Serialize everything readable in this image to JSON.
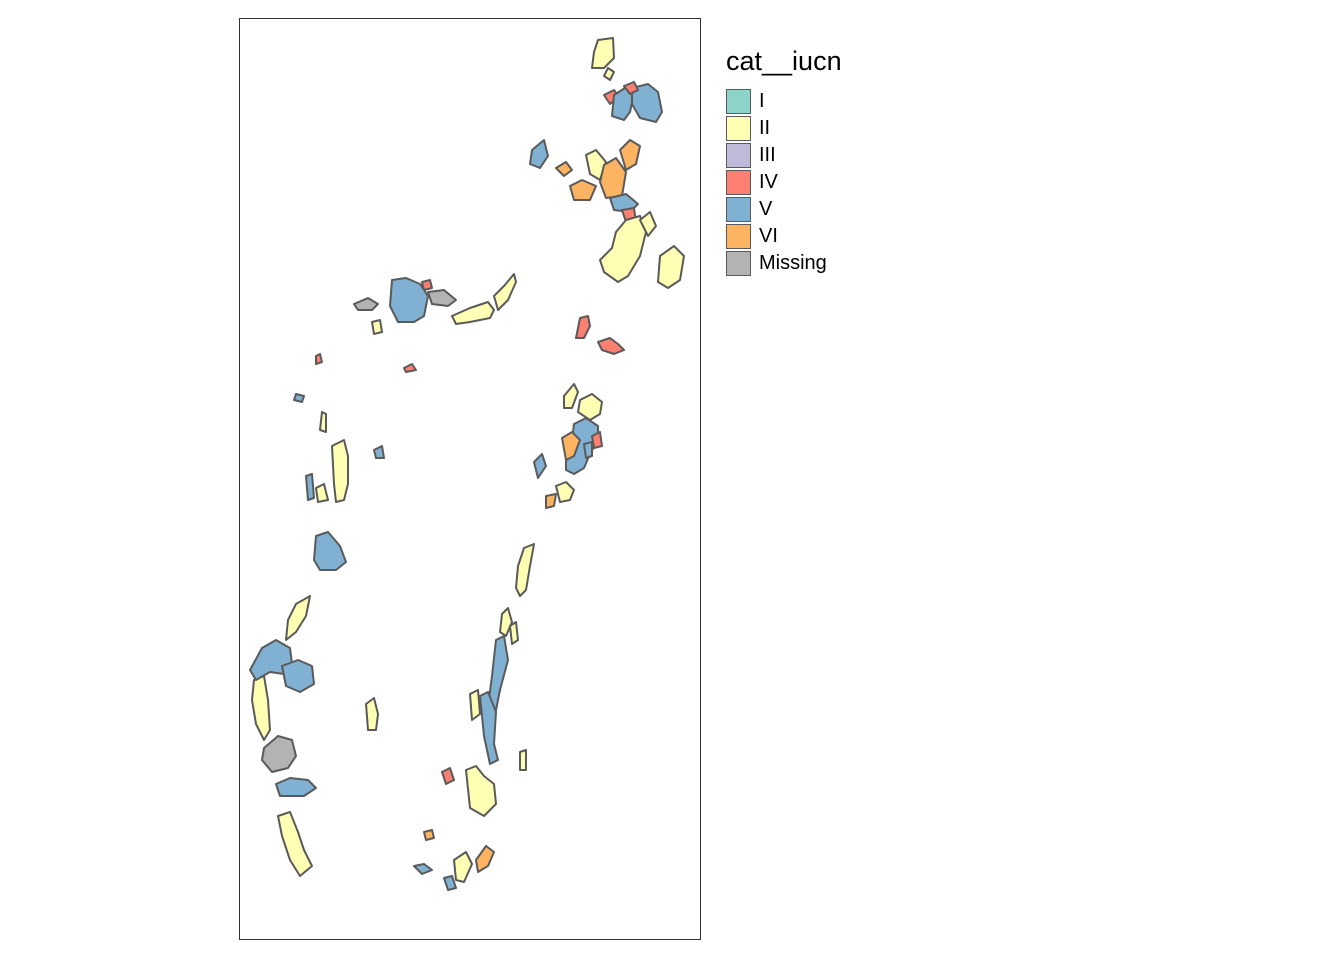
{
  "legend": {
    "title": "cat__iucn",
    "items": [
      {
        "label": "I",
        "color": "#8DD3C7"
      },
      {
        "label": "II",
        "color": "#FFFFB3"
      },
      {
        "label": "III",
        "color": "#BEBADA"
      },
      {
        "label": "IV",
        "color": "#FB8072"
      },
      {
        "label": "V",
        "color": "#80B1D3"
      },
      {
        "label": "VI",
        "color": "#FDB462"
      },
      {
        "label": "Missing",
        "color": "#B3B3B3"
      }
    ]
  },
  "map": {
    "areas": [
      {
        "category": "II"
      },
      {
        "category": "II"
      },
      {
        "category": "IV"
      },
      {
        "category": "V"
      },
      {
        "category": "V"
      },
      {
        "category": "IV"
      },
      {
        "category": "II"
      },
      {
        "category": "VI"
      },
      {
        "category": "VI"
      },
      {
        "category": "VI"
      },
      {
        "category": "V"
      },
      {
        "category": "IV"
      },
      {
        "category": "II"
      },
      {
        "category": "II"
      },
      {
        "category": "II"
      },
      {
        "category": "V"
      },
      {
        "category": "VI"
      },
      {
        "category": "Missing"
      },
      {
        "category": "II"
      },
      {
        "category": "II"
      },
      {
        "category": "Missing"
      },
      {
        "category": "II"
      },
      {
        "category": "IV"
      },
      {
        "category": "IV"
      },
      {
        "category": "IV"
      },
      {
        "category": "IV"
      },
      {
        "category": "IV"
      },
      {
        "category": "V"
      },
      {
        "category": "II"
      },
      {
        "category": "II"
      },
      {
        "category": "V"
      },
      {
        "category": "V"
      },
      {
        "category": "VI"
      },
      {
        "category": "II"
      },
      {
        "category": "IV"
      },
      {
        "category": "V"
      },
      {
        "category": "VI"
      },
      {
        "category": "V"
      },
      {
        "category": "II"
      },
      {
        "category": "II"
      },
      {
        "category": "V"
      },
      {
        "category": "II"
      },
      {
        "category": "V"
      },
      {
        "category": "V"
      },
      {
        "category": "II"
      },
      {
        "category": "II"
      },
      {
        "category": "II"
      },
      {
        "category": "V"
      },
      {
        "category": "II"
      },
      {
        "category": "V"
      },
      {
        "category": "II"
      },
      {
        "category": "II"
      },
      {
        "category": "IV"
      },
      {
        "category": "II"
      },
      {
        "category": "II"
      },
      {
        "category": "Missing"
      },
      {
        "category": "V"
      },
      {
        "category": "II"
      },
      {
        "category": "VI"
      },
      {
        "category": "II"
      },
      {
        "category": "VI"
      },
      {
        "category": "V"
      },
      {
        "category": "V"
      },
      {
        "category": "V"
      },
      {
        "category": "V"
      },
      {
        "category": "II"
      }
    ]
  }
}
